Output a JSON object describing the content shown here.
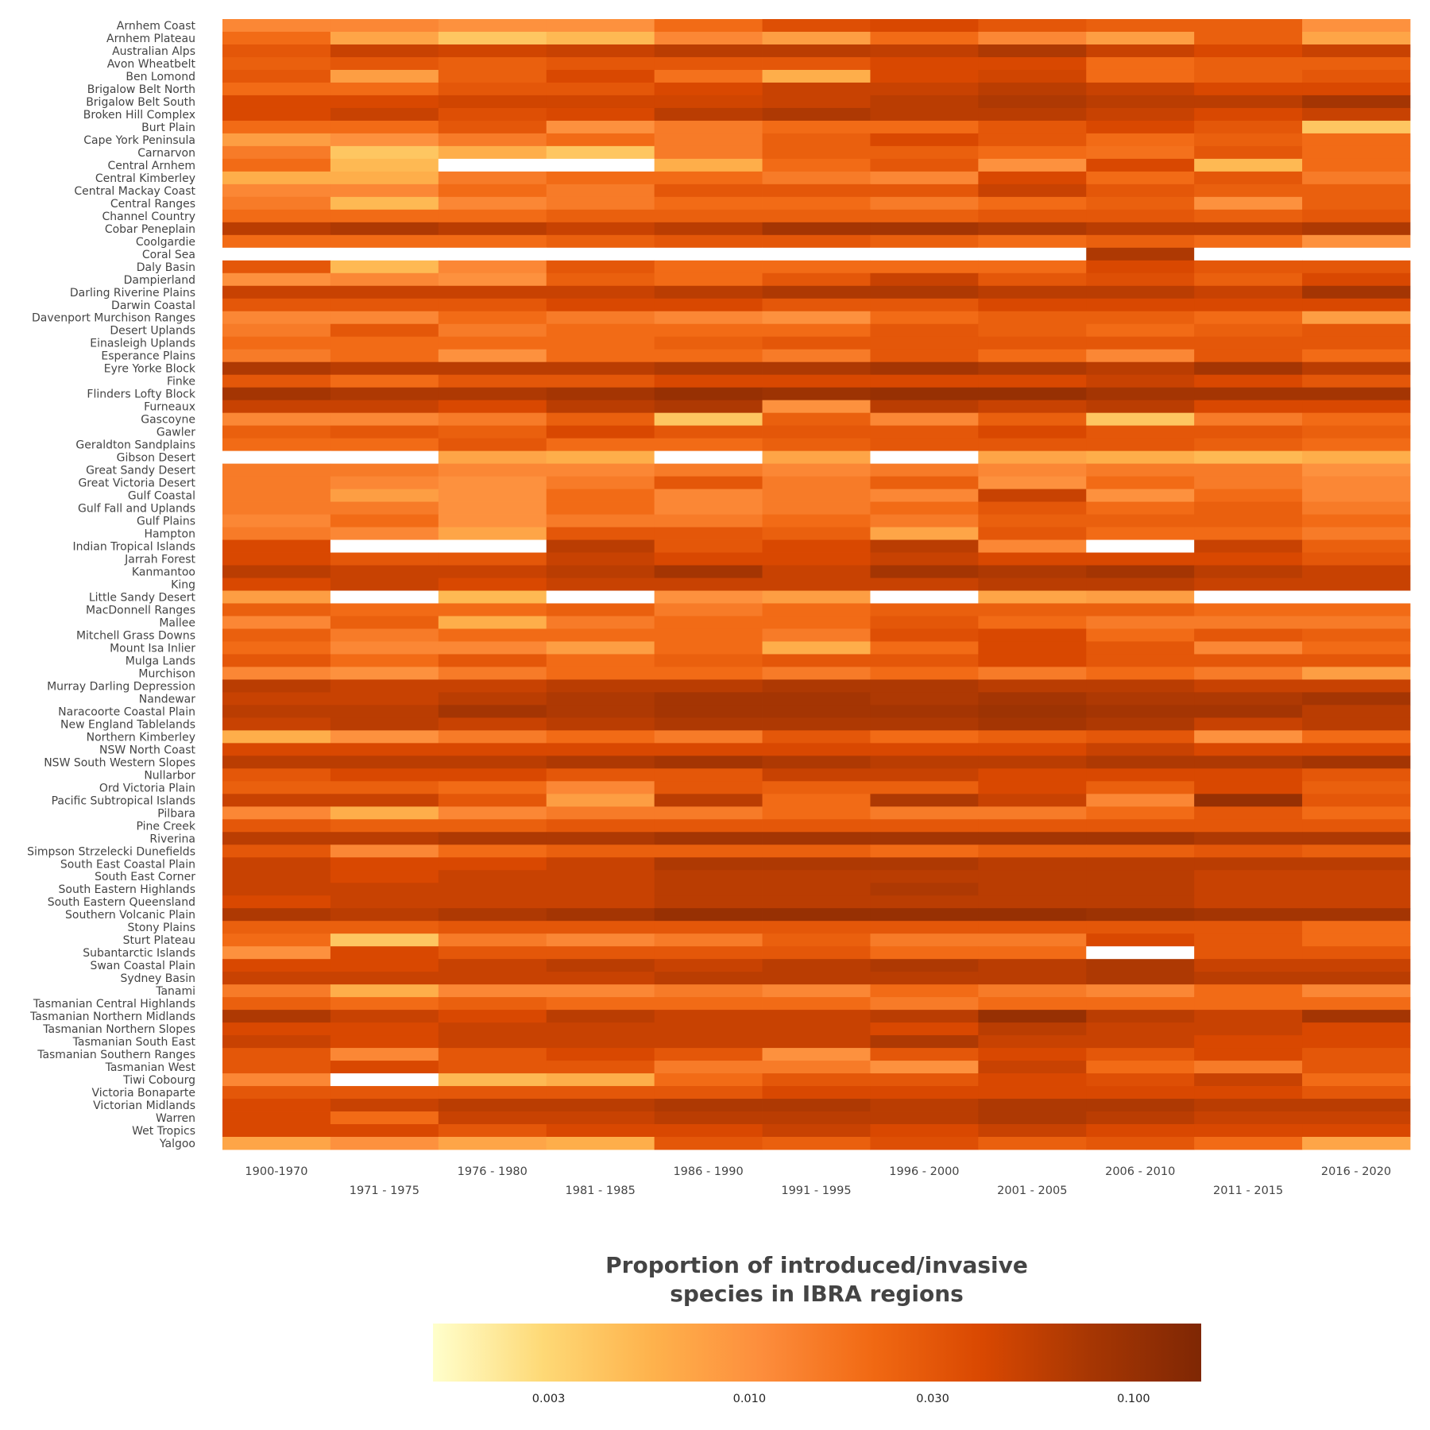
{
  "chart_data": {
    "type": "heatmap",
    "title": "",
    "xlabel": "",
    "ylabel": "",
    "x": [
      "1900-1970",
      "1971 - 1975",
      "1976 - 1980",
      "1981 - 1985",
      "1986 - 1990",
      "1991 - 1995",
      "1996 - 2000",
      "2001 - 2005",
      "2006 - 2010",
      "2011 - 2015",
      "2016 - 2020"
    ],
    "y": [
      "Arnhem Coast",
      "Arnhem Plateau",
      "Australian Alps",
      "Avon Wheatbelt",
      "Ben Lomond",
      "Brigalow Belt North",
      "Brigalow Belt South",
      "Broken Hill Complex",
      "Burt Plain",
      "Cape York Peninsula",
      "Carnarvon",
      "Central Arnhem",
      "Central Kimberley",
      "Central Mackay Coast",
      "Central Ranges",
      "Channel Country",
      "Cobar Peneplain",
      "Coolgardie",
      "Coral Sea",
      "Daly Basin",
      "Dampierland",
      "Darling Riverine Plains",
      "Darwin Coastal",
      "Davenport Murchison Ranges",
      "Desert Uplands",
      "Einasleigh Uplands",
      "Esperance Plains",
      "Eyre Yorke Block",
      "Finke",
      "Flinders Lofty Block",
      "Furneaux",
      "Gascoyne",
      "Gawler",
      "Geraldton Sandplains",
      "Gibson Desert",
      "Great Sandy Desert",
      "Great Victoria Desert",
      "Gulf Coastal",
      "Gulf Fall and Uplands",
      "Gulf Plains",
      "Hampton",
      "Indian Tropical Islands",
      "Jarrah Forest",
      "Kanmantoo",
      "King",
      "Little Sandy Desert",
      "MacDonnell Ranges",
      "Mallee",
      "Mitchell Grass Downs",
      "Mount Isa Inlier",
      "Mulga Lands",
      "Murchison",
      "Murray Darling Depression",
      "Nandewar",
      "Naracoorte Coastal Plain",
      "New England Tablelands",
      "Northern Kimberley",
      "NSW North Coast",
      "NSW South Western Slopes",
      "Nullarbor",
      "Ord Victoria Plain",
      "Pacific Subtropical Islands",
      "Pilbara",
      "Pine Creek",
      "Riverina",
      "Simpson Strzelecki Dunefields",
      "South East Coastal Plain",
      "South East Corner",
      "South Eastern Highlands",
      "South Eastern Queensland",
      "Southern Volcanic Plain",
      "Stony Plains",
      "Sturt Plateau",
      "Subantarctic Islands",
      "Swan Coastal Plain",
      "Sydney Basin",
      "Tanami",
      "Tasmanian Central Highlands",
      "Tasmanian Northern Midlands",
      "Tasmanian Northern Slopes",
      "Tasmanian South East",
      "Tasmanian Southern Ranges",
      "Tasmanian West",
      "Tiwi Cobourg",
      "Victoria Bonaparte",
      "Victorian Midlands",
      "Warren",
      "Wet Tropics",
      "Yalgoo"
    ],
    "values": [
      [
        0.012,
        0.012,
        0.01,
        0.01,
        0.02,
        0.035,
        0.04,
        0.03,
        0.025,
        0.025,
        0.01
      ],
      [
        0.02,
        0.007,
        0.004,
        0.005,
        0.012,
        0.008,
        0.02,
        0.012,
        0.008,
        0.025,
        0.007
      ],
      [
        0.03,
        0.05,
        0.045,
        0.05,
        0.06,
        0.06,
        0.055,
        0.07,
        0.05,
        0.04,
        0.05
      ],
      [
        0.025,
        0.03,
        0.025,
        0.03,
        0.03,
        0.03,
        0.04,
        0.04,
        0.02,
        0.025,
        0.025
      ],
      [
        0.03,
        0.008,
        0.025,
        0.04,
        0.018,
        0.006,
        0.04,
        0.045,
        0.02,
        0.025,
        0.03
      ],
      [
        0.02,
        0.02,
        0.03,
        0.03,
        0.04,
        0.05,
        0.05,
        0.06,
        0.05,
        0.04,
        0.04
      ],
      [
        0.04,
        0.04,
        0.045,
        0.045,
        0.045,
        0.05,
        0.06,
        0.07,
        0.06,
        0.06,
        0.08
      ],
      [
        0.04,
        0.05,
        0.035,
        0.04,
        0.06,
        0.07,
        0.06,
        0.06,
        0.05,
        0.04,
        0.05
      ],
      [
        0.02,
        0.02,
        0.03,
        0.01,
        0.015,
        0.02,
        0.02,
        0.03,
        0.04,
        0.03,
        0.004
      ],
      [
        0.008,
        0.01,
        0.015,
        0.02,
        0.015,
        0.025,
        0.04,
        0.03,
        0.02,
        0.025,
        0.02
      ],
      [
        0.015,
        0.004,
        0.006,
        0.004,
        0.015,
        0.025,
        0.025,
        0.02,
        0.018,
        0.03,
        0.02
      ],
      [
        0.02,
        0.005,
        null,
        null,
        0.006,
        0.02,
        0.03,
        0.01,
        0.04,
        0.005,
        0.02
      ],
      [
        0.006,
        0.006,
        0.015,
        0.02,
        0.02,
        0.015,
        0.012,
        0.04,
        0.02,
        0.03,
        0.015
      ],
      [
        0.012,
        0.012,
        0.02,
        0.015,
        0.03,
        0.03,
        0.03,
        0.05,
        0.03,
        0.025,
        0.025
      ],
      [
        0.015,
        0.005,
        0.012,
        0.015,
        0.02,
        0.02,
        0.015,
        0.02,
        0.025,
        0.01,
        0.025
      ],
      [
        0.02,
        0.02,
        0.02,
        0.025,
        0.025,
        0.025,
        0.025,
        0.03,
        0.03,
        0.025,
        0.03
      ],
      [
        0.06,
        0.07,
        0.06,
        0.05,
        0.06,
        0.08,
        0.08,
        0.07,
        0.06,
        0.06,
        0.07
      ],
      [
        0.02,
        0.02,
        0.02,
        0.025,
        0.03,
        0.03,
        0.025,
        0.02,
        0.025,
        0.02,
        0.01
      ],
      [
        null,
        null,
        null,
        null,
        null,
        null,
        null,
        null,
        0.07,
        null,
        null
      ],
      [
        0.03,
        0.005,
        0.012,
        0.03,
        0.02,
        0.02,
        0.02,
        0.02,
        0.04,
        0.03,
        0.03
      ],
      [
        0.01,
        0.012,
        0.01,
        0.025,
        0.02,
        0.03,
        0.05,
        0.03,
        0.035,
        0.025,
        0.04
      ],
      [
        0.05,
        0.05,
        0.05,
        0.05,
        0.06,
        0.07,
        0.07,
        0.06,
        0.06,
        0.05,
        0.08
      ],
      [
        0.03,
        0.03,
        0.03,
        0.04,
        0.04,
        0.03,
        0.03,
        0.04,
        0.04,
        0.04,
        0.04
      ],
      [
        0.012,
        0.012,
        0.02,
        0.015,
        0.012,
        0.01,
        0.02,
        0.025,
        0.025,
        0.02,
        0.008
      ],
      [
        0.015,
        0.03,
        0.015,
        0.02,
        0.02,
        0.02,
        0.03,
        0.025,
        0.02,
        0.025,
        0.03
      ],
      [
        0.02,
        0.02,
        0.02,
        0.02,
        0.025,
        0.03,
        0.03,
        0.03,
        0.03,
        0.03,
        0.03
      ],
      [
        0.015,
        0.02,
        0.01,
        0.02,
        0.02,
        0.015,
        0.03,
        0.02,
        0.012,
        0.03,
        0.02
      ],
      [
        0.07,
        0.06,
        0.06,
        0.06,
        0.07,
        0.07,
        0.08,
        0.07,
        0.06,
        0.08,
        0.06
      ],
      [
        0.03,
        0.02,
        0.03,
        0.03,
        0.04,
        0.04,
        0.04,
        0.04,
        0.05,
        0.04,
        0.03
      ],
      [
        0.08,
        0.07,
        0.07,
        0.08,
        0.1,
        0.09,
        0.1,
        0.1,
        0.08,
        0.08,
        0.08
      ],
      [
        0.05,
        0.05,
        0.04,
        0.06,
        0.07,
        0.01,
        0.06,
        0.05,
        0.06,
        0.04,
        0.04
      ],
      [
        0.012,
        0.012,
        0.015,
        0.025,
        0.004,
        0.025,
        0.012,
        0.025,
        0.004,
        0.015,
        0.02
      ],
      [
        0.025,
        0.03,
        0.025,
        0.04,
        0.03,
        0.03,
        0.03,
        0.04,
        0.03,
        0.03,
        0.025
      ],
      [
        0.02,
        0.02,
        0.03,
        0.02,
        0.02,
        0.025,
        0.03,
        0.03,
        0.03,
        0.025,
        0.02
      ],
      [
        null,
        null,
        0.007,
        0.006,
        null,
        0.007,
        null,
        0.007,
        0.006,
        0.005,
        0.006
      ],
      [
        0.015,
        0.015,
        0.012,
        0.012,
        0.015,
        0.012,
        0.015,
        0.012,
        0.015,
        0.015,
        0.01
      ],
      [
        0.015,
        0.012,
        0.01,
        0.015,
        0.03,
        0.015,
        0.025,
        0.01,
        0.02,
        0.015,
        0.012
      ],
      [
        0.015,
        0.008,
        0.01,
        0.02,
        0.012,
        0.015,
        0.012,
        0.05,
        0.01,
        0.02,
        0.012
      ],
      [
        0.015,
        0.015,
        0.01,
        0.02,
        0.012,
        0.015,
        0.02,
        0.03,
        0.02,
        0.025,
        0.015
      ],
      [
        0.012,
        0.02,
        0.01,
        0.015,
        0.015,
        0.02,
        0.015,
        0.025,
        0.025,
        0.025,
        0.02
      ],
      [
        0.015,
        0.012,
        0.007,
        0.03,
        0.03,
        0.025,
        0.007,
        0.03,
        0.02,
        0.02,
        0.015
      ],
      [
        0.04,
        null,
        null,
        0.06,
        0.03,
        0.04,
        0.06,
        0.012,
        null,
        0.05,
        0.025
      ],
      [
        0.04,
        0.03,
        0.03,
        0.05,
        0.04,
        0.04,
        0.05,
        0.04,
        0.04,
        0.04,
        0.03
      ],
      [
        0.06,
        0.05,
        0.05,
        0.06,
        0.08,
        0.05,
        0.08,
        0.07,
        0.08,
        0.06,
        0.05
      ],
      [
        0.04,
        0.05,
        0.04,
        0.05,
        0.05,
        0.05,
        0.05,
        0.06,
        0.06,
        0.05,
        0.05
      ],
      [
        0.008,
        null,
        0.005,
        null,
        0.01,
        0.008,
        null,
        0.007,
        0.008,
        null,
        null
      ],
      [
        0.025,
        0.02,
        0.02,
        0.025,
        0.015,
        0.02,
        0.025,
        0.025,
        0.025,
        0.02,
        0.02
      ],
      [
        0.012,
        0.025,
        0.006,
        0.015,
        0.02,
        0.02,
        0.03,
        0.02,
        0.015,
        0.015,
        0.015
      ],
      [
        0.025,
        0.015,
        0.02,
        0.02,
        0.02,
        0.015,
        0.035,
        0.04,
        0.02,
        0.03,
        0.025
      ],
      [
        0.02,
        0.012,
        0.012,
        0.008,
        0.02,
        0.006,
        0.02,
        0.04,
        0.03,
        0.012,
        0.02
      ],
      [
        0.03,
        0.02,
        0.03,
        0.02,
        0.025,
        0.03,
        0.03,
        0.04,
        0.03,
        0.03,
        0.03
      ],
      [
        0.012,
        0.01,
        0.015,
        0.02,
        0.02,
        0.015,
        0.02,
        0.015,
        0.02,
        0.015,
        0.008
      ],
      [
        0.06,
        0.05,
        0.05,
        0.06,
        0.06,
        0.07,
        0.07,
        0.06,
        0.06,
        0.05,
        0.05
      ],
      [
        0.05,
        0.05,
        0.06,
        0.07,
        0.08,
        0.08,
        0.07,
        0.08,
        0.07,
        0.07,
        0.08
      ],
      [
        0.06,
        0.06,
        0.08,
        0.07,
        0.08,
        0.08,
        0.08,
        0.09,
        0.08,
        0.08,
        0.06
      ],
      [
        0.05,
        0.06,
        0.05,
        0.06,
        0.07,
        0.07,
        0.07,
        0.08,
        0.07,
        0.05,
        0.06
      ],
      [
        0.006,
        0.01,
        0.015,
        0.02,
        0.015,
        0.03,
        0.02,
        0.025,
        0.03,
        0.01,
        0.02
      ],
      [
        0.04,
        0.04,
        0.04,
        0.04,
        0.04,
        0.04,
        0.04,
        0.04,
        0.05,
        0.04,
        0.04
      ],
      [
        0.06,
        0.06,
        0.06,
        0.07,
        0.08,
        0.07,
        0.06,
        0.06,
        0.07,
        0.07,
        0.08
      ],
      [
        0.03,
        0.04,
        0.04,
        0.03,
        0.03,
        0.05,
        0.05,
        0.04,
        0.04,
        0.04,
        0.03
      ],
      [
        0.025,
        0.025,
        0.02,
        0.012,
        0.03,
        0.025,
        0.025,
        0.04,
        0.025,
        0.04,
        0.025
      ],
      [
        0.05,
        0.05,
        0.03,
        0.008,
        0.06,
        0.02,
        0.07,
        0.05,
        0.012,
        0.1,
        0.03
      ],
      [
        0.012,
        0.006,
        0.012,
        0.015,
        0.015,
        0.02,
        0.015,
        0.015,
        0.02,
        0.03,
        0.02
      ],
      [
        0.03,
        0.025,
        0.025,
        0.03,
        0.03,
        0.03,
        0.03,
        0.03,
        0.03,
        0.03,
        0.03
      ],
      [
        0.06,
        0.06,
        0.07,
        0.07,
        0.08,
        0.08,
        0.08,
        0.08,
        0.08,
        0.07,
        0.07
      ],
      [
        0.03,
        0.012,
        0.02,
        0.025,
        0.025,
        0.025,
        0.02,
        0.025,
        0.025,
        0.03,
        0.025
      ],
      [
        0.05,
        0.04,
        0.04,
        0.05,
        0.07,
        0.07,
        0.07,
        0.06,
        0.06,
        0.06,
        0.06
      ],
      [
        0.05,
        0.04,
        0.05,
        0.05,
        0.06,
        0.06,
        0.06,
        0.06,
        0.06,
        0.05,
        0.05
      ],
      [
        0.05,
        0.05,
        0.05,
        0.05,
        0.06,
        0.06,
        0.07,
        0.06,
        0.06,
        0.05,
        0.05
      ],
      [
        0.04,
        0.05,
        0.05,
        0.05,
        0.06,
        0.06,
        0.06,
        0.06,
        0.06,
        0.05,
        0.05
      ],
      [
        0.07,
        0.06,
        0.07,
        0.08,
        0.1,
        0.1,
        0.1,
        0.1,
        0.09,
        0.08,
        0.08
      ],
      [
        0.025,
        0.025,
        0.03,
        0.03,
        0.03,
        0.03,
        0.03,
        0.03,
        0.03,
        0.03,
        0.02
      ],
      [
        0.02,
        0.004,
        0.015,
        0.012,
        0.015,
        0.025,
        0.015,
        0.015,
        0.04,
        0.03,
        0.02
      ],
      [
        0.01,
        0.04,
        0.03,
        0.03,
        0.03,
        0.03,
        0.02,
        0.02,
        null,
        0.03,
        0.03
      ],
      [
        0.04,
        0.04,
        0.05,
        0.06,
        0.05,
        0.06,
        0.07,
        0.06,
        0.07,
        0.05,
        0.05
      ],
      [
        0.05,
        0.05,
        0.05,
        0.05,
        0.06,
        0.06,
        0.06,
        0.06,
        0.07,
        0.06,
        0.06
      ],
      [
        0.015,
        0.006,
        0.012,
        0.012,
        0.015,
        0.012,
        0.02,
        0.015,
        0.012,
        0.02,
        0.012
      ],
      [
        0.025,
        0.02,
        0.025,
        0.02,
        0.02,
        0.02,
        0.015,
        0.02,
        0.02,
        0.02,
        0.02
      ],
      [
        0.07,
        0.05,
        0.04,
        0.06,
        0.05,
        0.05,
        0.06,
        0.1,
        0.06,
        0.05,
        0.08
      ],
      [
        0.04,
        0.04,
        0.05,
        0.05,
        0.05,
        0.05,
        0.04,
        0.06,
        0.05,
        0.05,
        0.04
      ],
      [
        0.05,
        0.04,
        0.05,
        0.05,
        0.05,
        0.05,
        0.07,
        0.05,
        0.05,
        0.04,
        0.04
      ],
      [
        0.03,
        0.012,
        0.03,
        0.04,
        0.03,
        0.01,
        0.03,
        0.04,
        0.03,
        0.04,
        0.03
      ],
      [
        0.03,
        0.04,
        0.03,
        0.03,
        0.015,
        0.015,
        0.01,
        0.05,
        0.02,
        0.015,
        0.03
      ],
      [
        0.012,
        null,
        0.005,
        0.006,
        0.02,
        0.03,
        0.03,
        0.04,
        0.035,
        0.05,
        0.02
      ],
      [
        0.03,
        0.03,
        0.03,
        0.03,
        0.03,
        0.04,
        0.04,
        0.04,
        0.04,
        0.04,
        0.03
      ],
      [
        0.04,
        0.05,
        0.06,
        0.06,
        0.07,
        0.07,
        0.06,
        0.07,
        0.07,
        0.06,
        0.06
      ],
      [
        0.04,
        0.02,
        0.05,
        0.05,
        0.06,
        0.06,
        0.06,
        0.07,
        0.06,
        0.05,
        0.05
      ],
      [
        0.04,
        0.04,
        0.03,
        0.04,
        0.04,
        0.05,
        0.04,
        0.05,
        0.04,
        0.04,
        0.04
      ],
      [
        0.007,
        0.01,
        0.007,
        0.006,
        0.03,
        0.025,
        0.035,
        0.025,
        0.03,
        0.02,
        0.007
      ]
    ],
    "color_scale": {
      "type": "log",
      "colors": [
        "#ffffcc",
        "#fed976",
        "#feb24c",
        "#fd8d3c",
        "#f16913",
        "#d94801",
        "#a63603",
        "#7f2704"
      ],
      "domain": [
        0.0015,
        0.15
      ],
      "missing_color": "#ffffff"
    },
    "legend": {
      "title_line1": "Proportion of introduced/invasive",
      "title_line2": "species in IBRA regions",
      "ticks": [
        0.003,
        0.01,
        0.03,
        0.1
      ],
      "tick_labels": [
        "0.003",
        "0.010",
        "0.030",
        "0.100"
      ],
      "placement": "bottom"
    },
    "grid": false
  }
}
